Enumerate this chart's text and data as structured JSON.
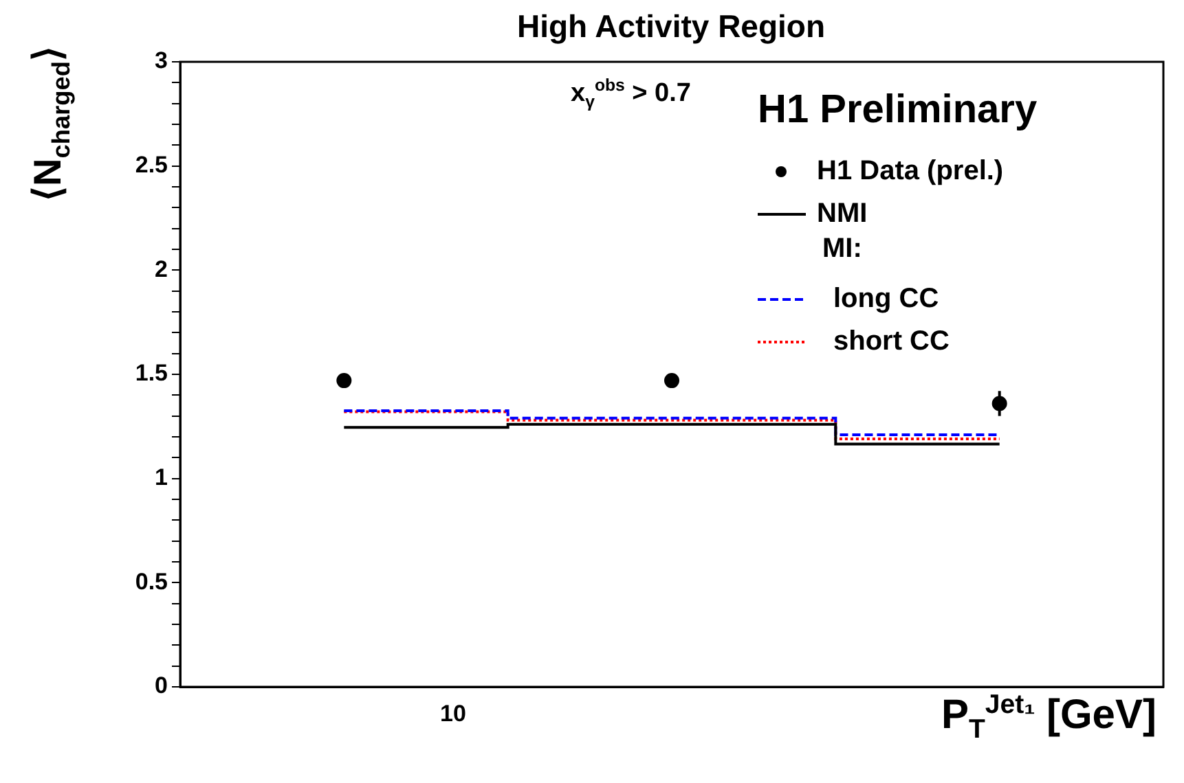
{
  "chart_data": {
    "type": "step",
    "title": "High Activity Region",
    "xlabel": "P$_{T}$$^{Jet₁}$ [GeV]",
    "ylabel": "⟨N$_{charged}$⟩",
    "legend_title": "H1 Preliminary",
    "annotations": [
      "x$_{γ}$$^{obs}$ > 0.7",
      "MI:",
      "10"
    ],
    "categories": [
      null,
      null,
      null
    ],
    "ylim": [
      0,
      3
    ],
    "yticks": [
      0,
      {
        "value": 0.1,
        "label": null
      },
      {
        "value": 0.2,
        "label": null
      },
      {
        "value": 0.3,
        "label": null
      },
      {
        "value": 0.4,
        "label": null
      },
      0.5,
      {
        "value": 0.6,
        "label": null
      },
      {
        "value": 0.7,
        "label": null
      },
      {
        "value": 0.8,
        "label": null
      },
      {
        "value": 0.9,
        "label": null
      },
      1,
      {
        "value": 1.1,
        "label": null
      },
      {
        "value": 1.2,
        "label": null
      },
      {
        "value": 1.3,
        "label": null
      },
      {
        "value": 1.4,
        "label": null
      },
      1.5,
      {
        "value": 1.6,
        "label": null
      },
      {
        "value": 1.7,
        "label": null
      },
      {
        "value": 1.8,
        "label": null
      },
      {
        "value": 1.9,
        "label": null
      },
      2,
      {
        "value": 2.1,
        "label": null
      },
      {
        "value": 2.2,
        "label": null
      },
      {
        "value": 2.3,
        "label": null
      },
      {
        "value": 2.4,
        "label": null
      },
      2.5,
      {
        "value": 2.6,
        "label": null
      },
      {
        "value": 2.7,
        "label": null
      },
      {
        "value": 2.8,
        "label": null
      },
      {
        "value": 2.9,
        "label": null
      },
      3
    ],
    "grid": false,
    "legend": "top right",
    "series": [
      {
        "name": "H1 Data (prel.)",
        "type": "scatter",
        "marker": "circle",
        "color": "#000000",
        "values": [
          1.47,
          1.47,
          1.36
        ],
        "errors": [
          0.03,
          0.03,
          0.06
        ]
      },
      {
        "name": "NMI",
        "line_style": "solid",
        "color": "#000000",
        "values": [
          1.245,
          1.26,
          1.165
        ]
      },
      {
        "name": "long CC",
        "line_style": "dashed",
        "color": "#0000ff",
        "values": [
          1.325,
          1.29,
          1.21
        ]
      },
      {
        "name": "short CC",
        "line_style": "dotted",
        "color": "#ff0000",
        "values": [
          1.32,
          1.28,
          1.19
        ]
      }
    ]
  }
}
